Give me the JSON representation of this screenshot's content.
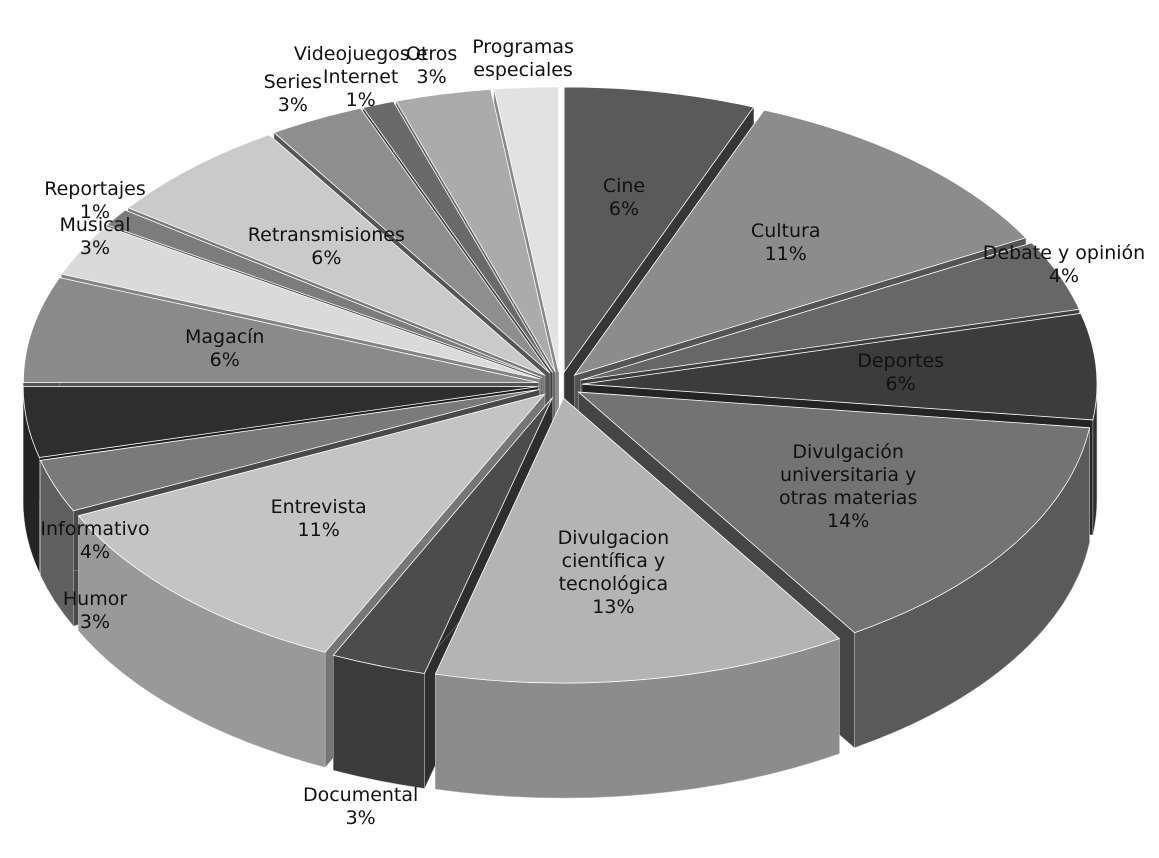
{
  "chart_data": {
    "type": "pie",
    "categories": [
      "Cine",
      "Cultura",
      "Debate y opinión",
      "Deportes",
      "Divulgación universitaria y otras materias",
      "Divulgacion científica y tecnológica",
      "Documental",
      "Entrevista",
      "Humor",
      "Informativo",
      "Magacín",
      "Musical",
      "Reportajes",
      "Retransmisiones",
      "Series",
      "Videojuegos e Internet",
      "Otros",
      "Programas especiales"
    ],
    "values": [
      6,
      11,
      4,
      6,
      14,
      13,
      3,
      11,
      3,
      4,
      6,
      3,
      1,
      6,
      3,
      1,
      3,
      2
    ],
    "value_labels": [
      "6%",
      "11%",
      "4%",
      "6%",
      "14%",
      "13%",
      "3%",
      "11%",
      "3%",
      "4%",
      "6%",
      "3%",
      "1%",
      "6%",
      "3%",
      "1%",
      "3%",
      null
    ],
    "colors": [
      "#5a5a5a",
      "#8c8c8c",
      "#676767",
      "#3c3c3c",
      "#737373",
      "#b4b4b4",
      "#4c4c4c",
      "#c4c4c4",
      "#7a7a7a",
      "#2e2e2e",
      "#8a8a8a",
      "#dadada",
      "#7c7c7c",
      "#cacaca",
      "#8e8e8e",
      "#6a6a6a",
      "#ababab",
      "#e2e2e2"
    ]
  }
}
